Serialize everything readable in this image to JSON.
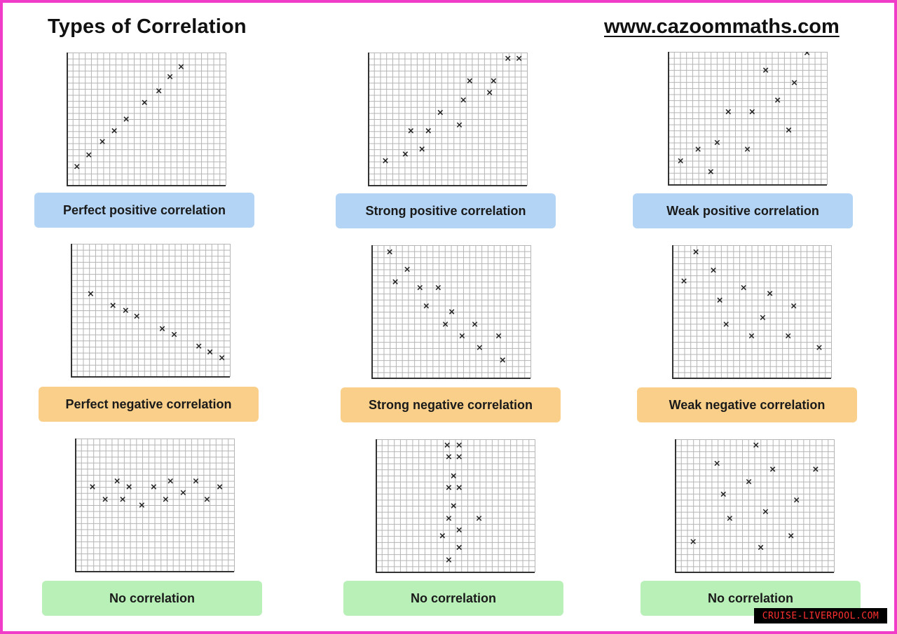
{
  "header": {
    "title": "Types of Correlation",
    "website": "www.cazoommaths.com"
  },
  "watermark": "CRUISE-LIVERPOOL.COM",
  "colors": {
    "border": "#f03cc8",
    "label_blue": "#b3d4f4",
    "label_orange": "#f9cf8a",
    "label_green": "#b9f0b8",
    "grid": "#b5b5b5",
    "axis": "#333333",
    "marker": "#222222"
  },
  "chart_data": [
    {
      "type": "scatter",
      "label": "Perfect positive correlation",
      "label_color": "blue",
      "grid": true,
      "xlim": [
        0,
        20
      ],
      "ylim": [
        0,
        16
      ],
      "points": [
        [
          1.3,
          2.3
        ],
        [
          2.8,
          3.7
        ],
        [
          4.5,
          5.3
        ],
        [
          6,
          6.6
        ],
        [
          7.5,
          8
        ],
        [
          9.8,
          10
        ],
        [
          11.6,
          11.4
        ],
        [
          13,
          13.1
        ],
        [
          14.4,
          14.3
        ]
      ]
    },
    {
      "type": "scatter",
      "label": "Strong positive correlation",
      "label_color": "blue",
      "grid": true,
      "xlim": [
        0,
        20
      ],
      "ylim": [
        0,
        16
      ],
      "points": [
        [
          2.2,
          3
        ],
        [
          4.7,
          3.8
        ],
        [
          5.4,
          6.6
        ],
        [
          6.8,
          4.4
        ],
        [
          7.6,
          6.6
        ],
        [
          9.1,
          8.8
        ],
        [
          11.5,
          7.3
        ],
        [
          12,
          10.3
        ],
        [
          12.8,
          12.6
        ],
        [
          15.3,
          11.2
        ],
        [
          15.8,
          12.6
        ],
        [
          17.6,
          15.3
        ],
        [
          19,
          15.3
        ]
      ]
    },
    {
      "type": "scatter",
      "label": "Weak positive correlation",
      "label_color": "blue",
      "grid": true,
      "xlim": [
        0,
        20
      ],
      "ylim": [
        0,
        16
      ],
      "points": [
        [
          1.6,
          2.9
        ],
        [
          3.8,
          4.3
        ],
        [
          5.4,
          1.6
        ],
        [
          6.2,
          5.1
        ],
        [
          7.6,
          8.8
        ],
        [
          10,
          4.3
        ],
        [
          10.6,
          8.8
        ],
        [
          12.3,
          13.8
        ],
        [
          13.8,
          10.2
        ],
        [
          15.2,
          6.6
        ],
        [
          15.9,
          12.3
        ],
        [
          17.5,
          15.9
        ]
      ]
    },
    {
      "type": "scatter",
      "label": "Perfect negative correlation",
      "label_color": "orange",
      "grid": true,
      "xlim": [
        0,
        20
      ],
      "ylim": [
        0,
        16
      ],
      "points": [
        [
          2.5,
          10
        ],
        [
          5.3,
          8.6
        ],
        [
          6.9,
          8
        ],
        [
          8.3,
          7.3
        ],
        [
          11.5,
          5.8
        ],
        [
          13,
          5.1
        ],
        [
          16.1,
          3.7
        ],
        [
          17.5,
          3
        ],
        [
          19,
          2.3
        ]
      ]
    },
    {
      "type": "scatter",
      "label": "Strong negative correlation",
      "label_color": "orange",
      "grid": true,
      "xlim": [
        0,
        20
      ],
      "ylim": [
        0,
        16
      ],
      "points": [
        [
          2.3,
          15.2
        ],
        [
          3,
          11.6
        ],
        [
          4.5,
          13.1
        ],
        [
          6.1,
          10.9
        ],
        [
          6.9,
          8.7
        ],
        [
          8.4,
          10.9
        ],
        [
          9.3,
          6.5
        ],
        [
          10.1,
          8
        ],
        [
          11.4,
          5.1
        ],
        [
          13,
          6.5
        ],
        [
          13.6,
          3.7
        ],
        [
          16,
          5.1
        ],
        [
          16.5,
          2.2
        ]
      ]
    },
    {
      "type": "scatter",
      "label": "Weak negative correlation",
      "label_color": "orange",
      "grid": true,
      "xlim": [
        0,
        20
      ],
      "ylim": [
        0,
        16
      ],
      "points": [
        [
          1.5,
          11.7
        ],
        [
          3,
          15.2
        ],
        [
          5.2,
          13
        ],
        [
          6,
          9.4
        ],
        [
          6.8,
          6.5
        ],
        [
          9,
          10.9
        ],
        [
          10,
          5.1
        ],
        [
          11.4,
          7.3
        ],
        [
          12.3,
          10.2
        ],
        [
          14.6,
          5.1
        ],
        [
          15.3,
          8.7
        ],
        [
          18.5,
          3.7
        ]
      ]
    },
    {
      "type": "scatter",
      "label": "No correlation",
      "label_color": "green",
      "grid": true,
      "xlim": [
        0,
        20
      ],
      "ylim": [
        0,
        16
      ],
      "points": [
        [
          2.2,
          10.2
        ],
        [
          3.8,
          8.7
        ],
        [
          5.3,
          10.9
        ],
        [
          6,
          8.7
        ],
        [
          6.8,
          10.2
        ],
        [
          8.4,
          8
        ],
        [
          9.9,
          10.2
        ],
        [
          11.4,
          8.7
        ],
        [
          12,
          10.9
        ],
        [
          13.6,
          9.5
        ],
        [
          15.2,
          10.9
        ],
        [
          16.6,
          8.7
        ],
        [
          18.2,
          10.2
        ]
      ]
    },
    {
      "type": "scatter",
      "label": "No correlation",
      "label_color": "green",
      "grid": true,
      "xlim": [
        0,
        20
      ],
      "ylim": [
        0,
        16
      ],
      "points": [
        [
          9,
          15.3
        ],
        [
          9.2,
          13.9
        ],
        [
          9.8,
          11.6
        ],
        [
          9.2,
          10.2
        ],
        [
          10.5,
          10.2
        ],
        [
          9.8,
          8
        ],
        [
          9.2,
          6.5
        ],
        [
          13,
          6.5
        ],
        [
          10.5,
          5.1
        ],
        [
          8.4,
          4.4
        ],
        [
          10.5,
          3
        ],
        [
          9.2,
          1.5
        ],
        [
          10.5,
          13.9
        ],
        [
          10.5,
          15.3
        ]
      ]
    },
    {
      "type": "scatter",
      "label": "No correlation",
      "label_color": "green",
      "grid": true,
      "xlim": [
        0,
        20
      ],
      "ylim": [
        0,
        16
      ],
      "points": [
        [
          2.3,
          3.7
        ],
        [
          5.3,
          13.1
        ],
        [
          6.1,
          9.4
        ],
        [
          6.9,
          6.5
        ],
        [
          9.3,
          10.9
        ],
        [
          10.2,
          15.3
        ],
        [
          10.8,
          3
        ],
        [
          11.4,
          7.3
        ],
        [
          12.3,
          12.4
        ],
        [
          14.6,
          4.4
        ],
        [
          15.3,
          8.7
        ],
        [
          17.7,
          12.4
        ]
      ]
    }
  ]
}
